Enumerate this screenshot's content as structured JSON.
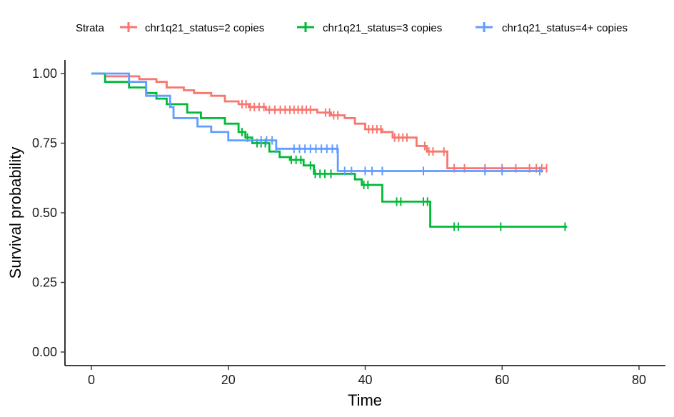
{
  "chart_data": {
    "type": "line",
    "step": true,
    "xlabel": "Time",
    "ylabel": "Survival probability",
    "xlim": [
      0,
      80
    ],
    "ylim": [
      0,
      1
    ],
    "x_ticks": [
      "0",
      "20",
      "40",
      "60",
      "80"
    ],
    "y_ticks": [
      "0.00",
      "0.25",
      "0.50",
      "0.75",
      "1.00"
    ],
    "grid": false,
    "legend": {
      "title": "Strata",
      "position": "top",
      "entries": [
        "chr1q21_status=2 copies",
        "chr1q21_status=3 copies",
        "chr1q21_status=4+ copies"
      ]
    },
    "series": [
      {
        "name": "chr1q21_status=2 copies",
        "color": "#F8766D",
        "steps": [
          [
            0,
            1.0
          ],
          [
            2,
            0.99
          ],
          [
            7,
            0.98
          ],
          [
            9.5,
            0.97
          ],
          [
            11,
            0.95
          ],
          [
            13.5,
            0.94
          ],
          [
            15,
            0.93
          ],
          [
            17.5,
            0.92
          ],
          [
            19.5,
            0.9
          ],
          [
            21.5,
            0.89
          ],
          [
            23,
            0.88
          ],
          [
            25.5,
            0.87
          ],
          [
            33,
            0.86
          ],
          [
            35,
            0.85
          ],
          [
            37,
            0.84
          ],
          [
            38.5,
            0.82
          ],
          [
            40,
            0.8
          ],
          [
            42.5,
            0.79
          ],
          [
            44,
            0.77
          ],
          [
            47.5,
            0.74
          ],
          [
            49,
            0.72
          ],
          [
            52,
            0.66
          ],
          [
            66.5,
            0.66
          ]
        ],
        "censor_times": [
          22,
          22.6,
          23.2,
          23.8,
          24.5,
          25.2,
          26,
          26.8,
          27.6,
          28.3,
          29,
          29.6,
          30.2,
          30.8,
          31.4,
          32,
          34.2,
          34.8,
          35.4,
          36,
          40.5,
          41.1,
          41.7,
          42.3,
          44.3,
          44.9,
          45.5,
          46.1,
          48.7,
          49.3,
          49.9,
          51.5,
          53,
          54.5,
          57.5,
          60,
          62,
          64,
          65,
          65.8,
          66.5
        ]
      },
      {
        "name": "chr1q21_status=3 copies",
        "color": "#00BA38",
        "steps": [
          [
            0,
            1.0
          ],
          [
            2,
            0.97
          ],
          [
            5.5,
            0.95
          ],
          [
            8,
            0.93
          ],
          [
            9.5,
            0.91
          ],
          [
            11,
            0.89
          ],
          [
            14,
            0.86
          ],
          [
            16,
            0.84
          ],
          [
            19.5,
            0.82
          ],
          [
            21.5,
            0.79
          ],
          [
            22.5,
            0.77
          ],
          [
            23.5,
            0.75
          ],
          [
            26,
            0.72
          ],
          [
            27.5,
            0.7
          ],
          [
            29,
            0.69
          ],
          [
            31,
            0.67
          ],
          [
            32.5,
            0.64
          ],
          [
            36,
            0.64
          ],
          [
            38.5,
            0.62
          ],
          [
            39.5,
            0.6
          ],
          [
            42.5,
            0.54
          ],
          [
            45,
            0.54
          ],
          [
            47,
            0.54
          ],
          [
            49.5,
            0.45
          ],
          [
            69.5,
            0.45
          ]
        ],
        "censor_times": [
          22,
          22.8,
          24.2,
          24.8,
          25.4,
          29.2,
          29.9,
          30.6,
          32,
          32.7,
          33.4,
          34.1,
          35,
          39.8,
          40.4,
          44.6,
          45.2,
          48.5,
          49.1,
          53,
          53.6,
          59.8,
          69.2
        ]
      },
      {
        "name": "chr1q21_status=4+ copies",
        "color": "#619CFF",
        "steps": [
          [
            0,
            1.0
          ],
          [
            5.5,
            0.97
          ],
          [
            8,
            0.92
          ],
          [
            11.5,
            0.88
          ],
          [
            12,
            0.84
          ],
          [
            15.5,
            0.81
          ],
          [
            17.5,
            0.79
          ],
          [
            20,
            0.76
          ],
          [
            27,
            0.73
          ],
          [
            36,
            0.65
          ],
          [
            66,
            0.65
          ]
        ],
        "censor_times": [
          24.8,
          25.6,
          26.4,
          27,
          29.6,
          30.4,
          31.2,
          32,
          32.8,
          33.6,
          34.4,
          35.2,
          35.9,
          37,
          38,
          40,
          41,
          42.5,
          48.5,
          57.5,
          60,
          65.5
        ]
      }
    ]
  }
}
